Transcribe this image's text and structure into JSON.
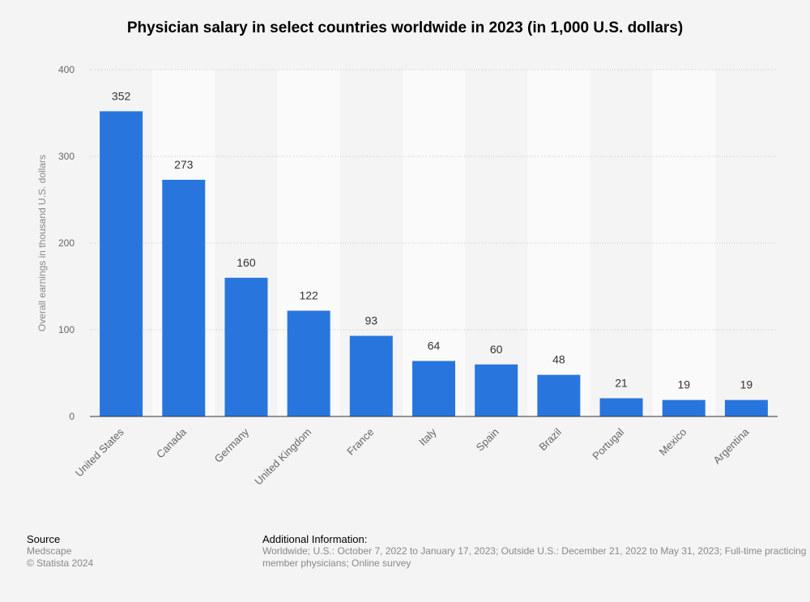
{
  "chart_data": {
    "type": "bar",
    "title": "Physician salary in select countries worldwide in 2023 (in 1,000 U.S. dollars)",
    "xlabel": "",
    "ylabel": "Overall earnings in thousand U.S. dollars",
    "categories": [
      "United States",
      "Canada",
      "Germany",
      "United Kingdom",
      "France",
      "Italy",
      "Spain",
      "Brazil",
      "Portugal",
      "Mexico",
      "Argentina"
    ],
    "values": [
      352,
      273,
      160,
      122,
      93,
      64,
      60,
      48,
      21,
      19,
      19
    ],
    "ylim": [
      0,
      400
    ],
    "yticks": [
      0,
      100,
      200,
      300,
      400
    ],
    "grid": true,
    "bar_color": "#2876dd"
  },
  "footer": {
    "source_label": "Source",
    "source": "Medscape",
    "copyright": "© Statista 2024",
    "info_label": "Additional Information:",
    "info_line1": "Worldwide; U.S.: October 7, 2022 to January 17, 2023; Outside U.S.: December 21, 2022 to May 31, 2023; Full-time practicing",
    "info_line2": "member physicians; Online survey"
  }
}
